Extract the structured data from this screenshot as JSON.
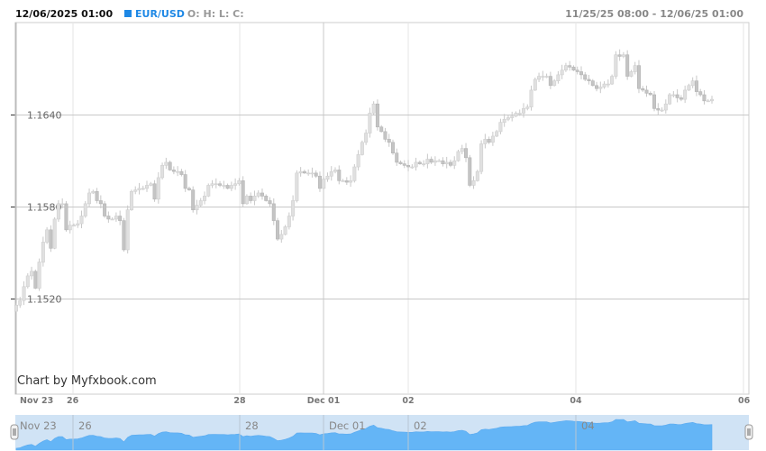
{
  "header": {
    "datetime": "12/06/2025 01:00",
    "symbol": "EUR/USD",
    "ohlc_label": "O: H: L: C:",
    "range": "11/25/25 08:00 - 12/06/25 01:00"
  },
  "credit": "Chart by Myfxbook.com",
  "colors": {
    "accent": "#1e88e5",
    "navigator_bg": "#d0e3f5",
    "navigator_area": "#64b5f6",
    "candle_up": "#e0e0e0",
    "candle_down": "#c4c4c4"
  },
  "chart_data": {
    "type": "candlestick",
    "title": "",
    "ylim": [
      1.1458,
      1.17
    ],
    "y_ticks": [
      "1.1520",
      "1.1580",
      "1.1640"
    ],
    "y_tick_values": [
      1.152,
      1.158,
      1.164
    ],
    "x_ticks": [
      "Nov 23",
      "26",
      "28",
      "Dec 01",
      "02",
      "04",
      "06"
    ],
    "grid": true,
    "close": [
      1.1516,
      1.1519,
      1.1528,
      1.1535,
      1.1538,
      1.1527,
      1.1544,
      1.1557,
      1.1565,
      1.1553,
      1.1572,
      1.1582,
      1.1582,
      1.1565,
      1.1568,
      1.1568,
      1.1569,
      1.1574,
      1.1582,
      1.1589,
      1.159,
      1.1584,
      1.1582,
      1.1574,
      1.1572,
      1.1572,
      1.1574,
      1.1571,
      1.1552,
      1.1578,
      1.159,
      1.1591,
      1.1592,
      1.1592,
      1.1594,
      1.1595,
      1.1585,
      1.1599,
      1.1607,
      1.1609,
      1.1604,
      1.1603,
      1.1603,
      1.1601,
      1.1592,
      1.1591,
      1.1578,
      1.1581,
      1.1584,
      1.1587,
      1.1594,
      1.1595,
      1.1595,
      1.1594,
      1.1594,
      1.1592,
      1.1594,
      1.1595,
      1.1597,
      1.1582,
      1.1587,
      1.1584,
      1.1587,
      1.1589,
      1.1587,
      1.1584,
      1.1582,
      1.1571,
      1.1559,
      1.1562,
      1.1567,
      1.1574,
      1.1584,
      1.1602,
      1.1603,
      1.1602,
      1.1602,
      1.1602,
      1.16,
      1.1592,
      1.1598,
      1.16,
      1.1603,
      1.1604,
      1.1597,
      1.1597,
      1.1596,
      1.1597,
      1.1606,
      1.1614,
      1.1622,
      1.1628,
      1.1641,
      1.1647,
      1.1632,
      1.1629,
      1.1624,
      1.1622,
      1.1615,
      1.1609,
      1.1608,
      1.1607,
      1.1606,
      1.1606,
      1.1609,
      1.1608,
      1.1608,
      1.1611,
      1.1609,
      1.161,
      1.161,
      1.1608,
      1.1609,
      1.1607,
      1.161,
      1.1616,
      1.1618,
      1.1612,
      1.1594,
      1.1597,
      1.1603,
      1.1621,
      1.1624,
      1.1622,
      1.1626,
      1.1629,
      1.1635,
      1.1637,
      1.1638,
      1.1639,
      1.1641,
      1.1641,
      1.1644,
      1.1645,
      1.1656,
      1.1663,
      1.1665,
      1.1665,
      1.1665,
      1.1659,
      1.1662,
      1.1666,
      1.1669,
      1.1672,
      1.1671,
      1.1669,
      1.1668,
      1.1666,
      1.1663,
      1.1662,
      1.1659,
      1.1657,
      1.1658,
      1.166,
      1.166,
      1.1665,
      1.1679,
      1.1678,
      1.1679,
      1.1665,
      1.1668,
      1.1672,
      1.1657,
      1.1656,
      1.1654,
      1.1653,
      1.1644,
      1.1643,
      1.1643,
      1.1647,
      1.1653,
      1.1653,
      1.1651,
      1.165,
      1.1656,
      1.1659,
      1.1662,
      1.1655,
      1.1653,
      1.1649,
      1.1649,
      1.165
    ]
  }
}
